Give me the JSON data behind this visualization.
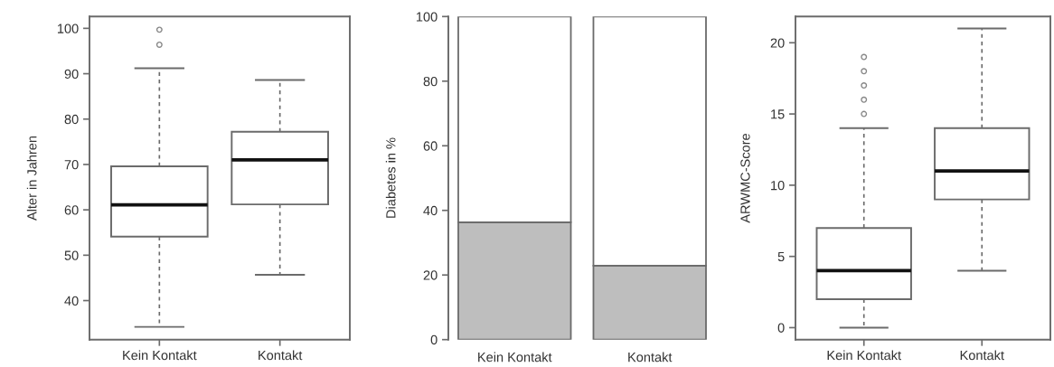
{
  "chart_data": [
    {
      "type": "box",
      "ylabel": "Alter in Jahren",
      "categories": [
        "Kein Kontakt",
        "Kontakt"
      ],
      "boxes": [
        {
          "low": 34.2,
          "q1": 54.1,
          "median": 61.1,
          "q3": 69.6,
          "high": 91.2,
          "outliers": [
            96.4,
            99.7
          ]
        },
        {
          "low": 45.7,
          "q1": 61.2,
          "median": 71.0,
          "q3": 77.2,
          "high": 88.6
        }
      ],
      "ylim": [
        31.4,
        102.6
      ],
      "yticks": [
        40,
        50,
        60,
        70,
        80,
        90,
        100
      ]
    },
    {
      "type": "bar",
      "stacked": true,
      "ylabel": "Diabetes in %",
      "categories": [
        "Kein Kontakt",
        "Kontakt"
      ],
      "series": [
        {
          "color": "#bebebe",
          "values": [
            36.3,
            22.9
          ]
        },
        {
          "color": "#ffffff",
          "values": [
            63.7,
            77.1
          ]
        }
      ],
      "ylim": [
        0,
        100
      ],
      "yticks": [
        0,
        20,
        40,
        60,
        80,
        100
      ]
    },
    {
      "type": "box",
      "ylabel": "ARWMC-Score",
      "categories": [
        "Kein Kontakt",
        "Kontakt"
      ],
      "boxes": [
        {
          "low": 0,
          "q1": 2,
          "median": 4,
          "q3": 7,
          "high": 14,
          "outliers": [
            15,
            16,
            17,
            18,
            19
          ]
        },
        {
          "low": 4,
          "q1": 9,
          "median": 11,
          "q3": 14,
          "high": 21
        }
      ],
      "ylim": [
        -0.84,
        21.84
      ],
      "yticks": [
        0,
        5,
        10,
        15,
        20
      ]
    }
  ]
}
